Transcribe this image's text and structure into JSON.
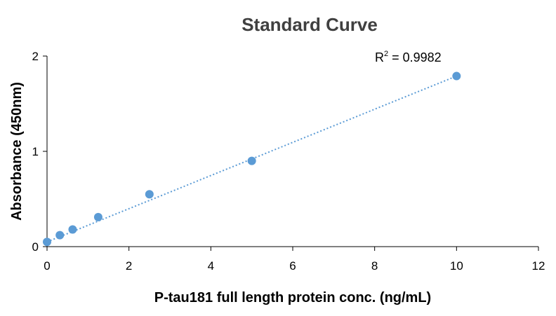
{
  "chart_data": {
    "type": "scatter",
    "title": "Standard Curve",
    "xlabel": "P-tau181 full length protein conc. (ng/mL)",
    "ylabel": "Absorbance (450nm)",
    "xlim": [
      0,
      12
    ],
    "ylim": [
      0,
      2
    ],
    "xticks": [
      "0",
      "2",
      "4",
      "6",
      "8",
      "10",
      "12"
    ],
    "yticks": [
      "0",
      "1",
      "2"
    ],
    "grid": false,
    "legend": "none",
    "series": [
      {
        "color": "#5b9bd5",
        "x": [
          0,
          0.3125,
          0.625,
          1.25,
          2.5,
          5,
          10
        ],
        "y": [
          0.05,
          0.12,
          0.18,
          0.31,
          0.55,
          0.9,
          1.79
        ]
      }
    ],
    "trendline": {
      "style": "dotted",
      "color": "#5b9bd5",
      "x": [
        0,
        10
      ],
      "y": [
        0.05,
        1.79
      ]
    },
    "annotation": {
      "r_label": "R",
      "r_exponent": "2",
      "r_value": " = 0.9982"
    }
  }
}
